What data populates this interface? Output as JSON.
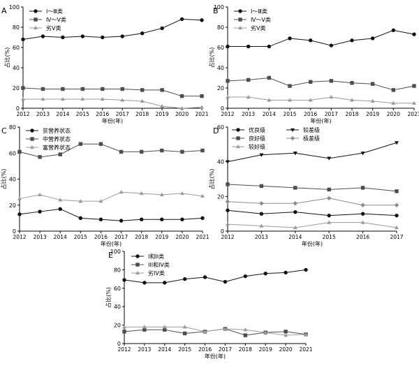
{
  "chart_data": [
    {
      "panel": "A",
      "type": "line",
      "x": [
        "2012",
        "2013",
        "2014",
        "2015",
        "2016",
        "2017",
        "2018",
        "2019",
        "2020",
        "2021"
      ],
      "xlabel": "年份(年)",
      "ylabel": "占比(%)",
      "ylim": [
        0,
        100
      ],
      "yticks": [
        0,
        20,
        40,
        60,
        80,
        100
      ],
      "legend_position": "top-left",
      "series": [
        {
          "name": "Ⅰ～Ⅲ类",
          "marker": "circle",
          "values": [
            68,
            71,
            70,
            71,
            70,
            71,
            74,
            79,
            88,
            87
          ]
        },
        {
          "name": "Ⅳ～Ⅴ类",
          "marker": "square",
          "values": [
            20,
            19,
            19,
            19,
            19,
            19,
            18,
            18,
            12,
            12
          ]
        },
        {
          "name": "劣Ⅴ类",
          "marker": "triangle",
          "values": [
            9,
            9,
            9,
            9,
            9,
            8,
            7,
            2,
            0,
            1
          ]
        }
      ]
    },
    {
      "panel": "B",
      "type": "line",
      "x": [
        "2012",
        "2013",
        "2014",
        "2015",
        "2016",
        "2017",
        "2018",
        "2019",
        "2020",
        "2021"
      ],
      "xlabel": "年份(年)",
      "ylabel": "占比(%)",
      "ylim": [
        0,
        100
      ],
      "yticks": [
        0,
        20,
        40,
        60,
        80,
        100
      ],
      "legend_position": "top-left",
      "series": [
        {
          "name": "Ⅰ～Ⅲ类",
          "marker": "circle",
          "values": [
            61,
            61,
            61,
            69,
            67,
            62,
            67,
            69,
            77,
            73
          ]
        },
        {
          "name": "Ⅳ～Ⅴ类",
          "marker": "square",
          "values": [
            27,
            28,
            30,
            22,
            26,
            27,
            25,
            24,
            18,
            22
          ]
        },
        {
          "name": "劣Ⅴ类",
          "marker": "triangle",
          "values": [
            11,
            11,
            8,
            8,
            8,
            11,
            8,
            7,
            5,
            5
          ]
        }
      ]
    },
    {
      "panel": "C",
      "type": "line",
      "x": [
        "2012",
        "2013",
        "2014",
        "2015",
        "2016",
        "2017",
        "2018",
        "2019",
        "2020",
        "2021"
      ],
      "xlabel": "年份(年)",
      "ylabel": "占比(%)",
      "ylim": [
        0,
        80
      ],
      "yticks": [
        0,
        20,
        40,
        60,
        80
      ],
      "legend_position": "top-left",
      "series": [
        {
          "name": "贫营养状态",
          "marker": "circle",
          "values": [
            13,
            15,
            17,
            10,
            9,
            8,
            9,
            9,
            9,
            10
          ]
        },
        {
          "name": "中营养状态",
          "marker": "square",
          "values": [
            61,
            57,
            59,
            67,
            67,
            61,
            61,
            62,
            61,
            62
          ]
        },
        {
          "name": "富营养状态",
          "marker": "triangle",
          "values": [
            25,
            28,
            24,
            23,
            23,
            30,
            29,
            28,
            29,
            27
          ]
        }
      ]
    },
    {
      "panel": "D",
      "type": "line",
      "x": [
        "2012",
        "2013",
        "2014",
        "2015",
        "2016",
        "2017"
      ],
      "xlabel": "年份(年)",
      "ylabel": "占比(%)",
      "ylim": [
        0,
        60
      ],
      "yticks": [
        0,
        20,
        40,
        60
      ],
      "legend_position": "top",
      "series": [
        {
          "name": "优良级",
          "marker": "circle",
          "values": [
            12,
            10,
            11,
            9,
            10,
            9
          ]
        },
        {
          "name": "良好级",
          "marker": "square",
          "values": [
            27,
            26,
            25,
            24,
            25,
            23
          ]
        },
        {
          "name": "较好级",
          "marker": "triangle",
          "values": [
            4,
            3,
            2,
            5,
            5,
            2
          ]
        },
        {
          "name": "较差级",
          "marker": "triangle-down",
          "values": [
            40,
            44,
            45,
            42,
            45,
            51
          ]
        },
        {
          "name": "极差级",
          "marker": "diamond",
          "values": [
            17,
            16,
            16,
            19,
            15,
            15
          ]
        }
      ]
    },
    {
      "panel": "E",
      "type": "line",
      "x": [
        "2012",
        "2013",
        "2014",
        "2015",
        "2016",
        "2017",
        "2018",
        "2019",
        "2020",
        "2021"
      ],
      "xlabel": "年份(年)",
      "ylabel": "占比(%)",
      "ylim": [
        0,
        100
      ],
      "yticks": [
        0,
        20,
        40,
        60,
        80,
        100
      ],
      "legend_position": "top-left",
      "series": [
        {
          "name": "I和II类",
          "marker": "circle",
          "values": [
            69,
            66,
            66,
            70,
            72,
            67,
            73,
            76,
            77,
            80
          ]
        },
        {
          "name": "III和IV类",
          "marker": "square",
          "values": [
            13,
            15,
            15,
            11,
            13,
            16,
            9,
            12,
            13,
            10
          ]
        },
        {
          "name": "劣IV类",
          "marker": "triangle",
          "values": [
            18,
            18,
            18,
            18,
            13,
            16,
            15,
            12,
            9,
            10
          ]
        }
      ]
    }
  ],
  "colors": {
    "circle": "#111111",
    "square": "#4d4d4d",
    "triangle": "#9a9a9a",
    "triangle-down": "#111111",
    "diamond": "#8c8c8c"
  }
}
